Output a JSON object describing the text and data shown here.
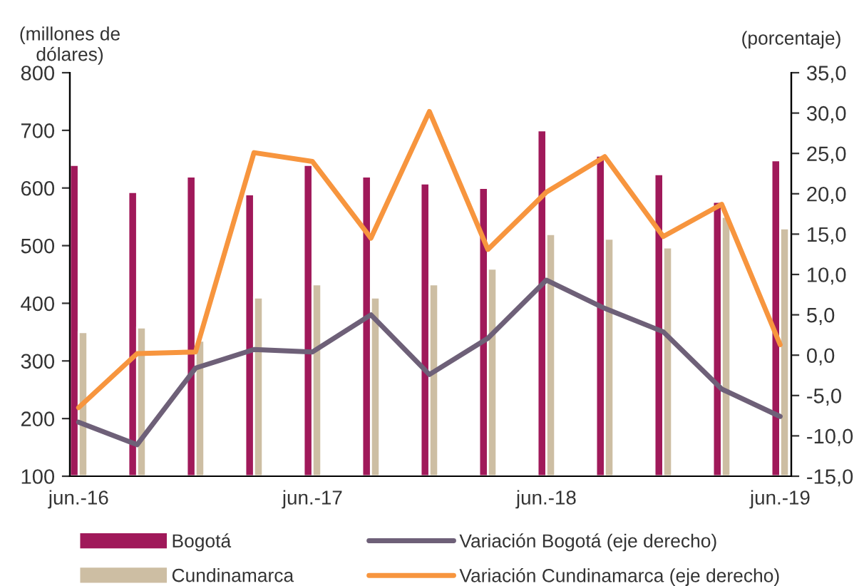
{
  "chart_data": {
    "type": "bar",
    "ylabel": "(millones de\ndólares)",
    "y2label": "(porcentaje)",
    "categories": [
      "jun.-16",
      null,
      null,
      null,
      "jun.-17",
      null,
      null,
      null,
      "jun.-18",
      null,
      null,
      null,
      "jun.-19"
    ],
    "series": [
      {
        "name": "Bogotá",
        "color": "#a0195a",
        "values": [
          640,
          593,
          620,
          589,
          640,
          620,
          608,
          600,
          700,
          656,
          624,
          576,
          648
        ]
      },
      {
        "name": "Cundinamarca",
        "color": "#cdbea3",
        "values": [
          350,
          358,
          335,
          410,
          433,
          410,
          433,
          460,
          520,
          512,
          497,
          550,
          530
        ]
      },
      {
        "name": "Variación Bogotá (eje derecho)",
        "type": "line",
        "axis": "y2",
        "color": "#6e6078",
        "values": [
          -8.3,
          -11.1,
          -1.6,
          0.7,
          0.4,
          5.0,
          -2.4,
          2.1,
          9.3,
          5.8,
          2.9,
          -4.2,
          -7.6
        ]
      },
      {
        "name": "Variación Cundinamarca (eje derecho)",
        "type": "line",
        "axis": "y2",
        "color": "#f7953e",
        "values": [
          -6.5,
          0.2,
          0.4,
          25.1,
          24.0,
          14.5,
          30.2,
          13.1,
          20.2,
          24.6,
          14.7,
          18.7,
          1.3
        ]
      }
    ],
    "ylim": [
      100,
      800
    ],
    "yticks": [
      100,
      200,
      300,
      400,
      500,
      600,
      700,
      800
    ],
    "y2lim": [
      -15,
      35
    ],
    "y2ticks": [
      {
        "value": -15,
        "label": "-15,0"
      },
      {
        "value": -10,
        "label": "-10,0"
      },
      {
        "value": -5,
        "label": "-5,0"
      },
      {
        "value": 0,
        "label": "0,0"
      },
      {
        "value": 5,
        "label": "5,0"
      },
      {
        "value": 10,
        "label": "10,0"
      },
      {
        "value": 15,
        "label": "15,0"
      },
      {
        "value": 20,
        "label": "20,0"
      },
      {
        "value": 25,
        "label": "25,0"
      },
      {
        "value": 30,
        "label": "30,0"
      },
      {
        "value": 35,
        "label": "35,0"
      }
    ],
    "grid": false,
    "legend": "bottom",
    "line_style": "solid",
    "marker": "none"
  }
}
